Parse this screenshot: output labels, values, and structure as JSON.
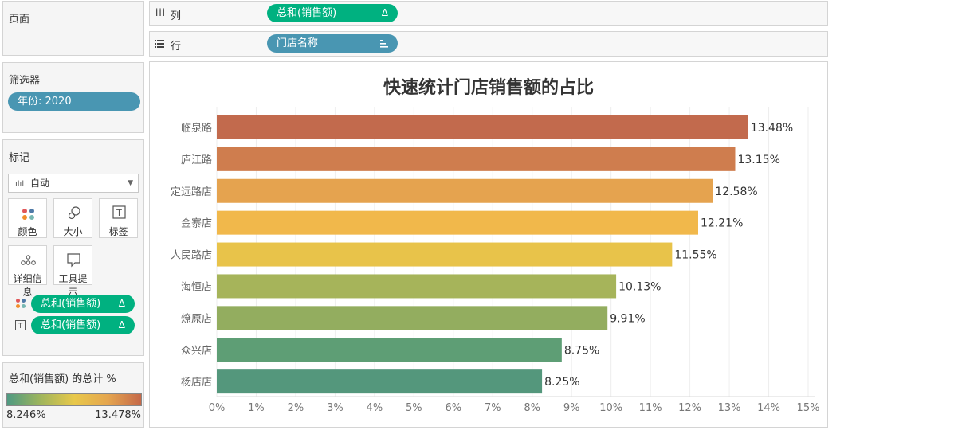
{
  "pages_panel": {
    "title": "页面"
  },
  "filters_panel": {
    "title": "筛选器",
    "filter_pill": "年份: 2020"
  },
  "marks_panel": {
    "title": "标记",
    "mark_type": "自动",
    "buttons": [
      "颜色",
      "大小",
      "标签",
      "详细信息",
      "工具提示"
    ],
    "color_pill": "总和(销售额)",
    "label_pill": "总和(销售额)",
    "pill_delta": "Δ"
  },
  "legend": {
    "title": "总和(销售额) 的总计 %",
    "min": "8.246%",
    "max": "13.478%",
    "colors": [
      "#4f9a82",
      "#e8c84a",
      "#c5694a"
    ]
  },
  "shelves": {
    "columns_label": "列",
    "columns_pill": "总和(销售额)",
    "columns_delta": "Δ",
    "rows_label": "行",
    "rows_pill": "门店名称"
  },
  "chart_data": {
    "type": "bar",
    "orientation": "horizontal",
    "title": "快速统计门店销售额的占比",
    "categories": [
      "临泉路",
      "庐江路",
      "定远路店",
      "金寨店",
      "人民路店",
      "海恒店",
      "燎原店",
      "众兴店",
      "杨店店"
    ],
    "values": [
      13.48,
      13.15,
      12.58,
      12.21,
      11.55,
      10.13,
      9.91,
      8.75,
      8.25
    ],
    "value_labels": [
      "13.48%",
      "13.15%",
      "12.58%",
      "12.21%",
      "11.55%",
      "10.13%",
      "9.91%",
      "8.75%",
      "8.25%"
    ],
    "bar_colors": [
      "#c26a4d",
      "#cf7d4e",
      "#e5a34f",
      "#f1b84b",
      "#e8c34a",
      "#a6b45a",
      "#93ad5f",
      "#5e9e75",
      "#54977c"
    ],
    "xlim": [
      0,
      15
    ],
    "x_ticks": [
      "0%",
      "1%",
      "2%",
      "3%",
      "4%",
      "5%",
      "6%",
      "7%",
      "8%",
      "9%",
      "10%",
      "11%",
      "12%",
      "13%",
      "14%",
      "15%"
    ],
    "grid": true
  }
}
